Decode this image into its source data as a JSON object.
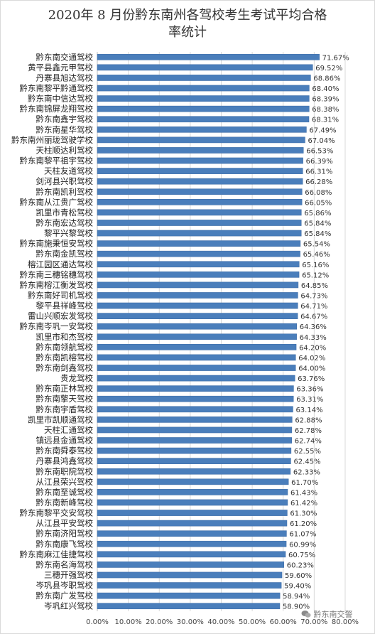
{
  "chart_data": {
    "type": "bar",
    "orientation": "horizontal",
    "title": "2020年 8 月份黔东南州各驾校考生考试平均合格率统计",
    "title_lines": [
      "2020年 8 月份黔东南州各驾校考生考试平均合格",
      "率统计"
    ],
    "categories": [
      "黔东南交通驾校",
      "黄平县鑫元甲驾校",
      "丹寨县旭达驾校",
      "黔东南黎平黔通驾校",
      "黔东南中信达驾校",
      "黔东南锦屏龙翔驾校",
      "黔东南鑫宇驾校",
      "黔东南星华驾校",
      "黔东南州丽珑驾驶学校",
      "天柱顺达利驾校",
      "黔东南黎平祖宇驾校",
      "天柱友道驾校",
      "剑河县兴职驾校",
      "黔东南凯利驾校",
      "黔东南从江贵广驾校",
      "凯里市青松驾校",
      "黔东南宏达驾校",
      "黎平兴黎驾校",
      "黔东南施秉恒安驾校",
      "黔东南金凯驾校",
      "榕江园区通达驾校",
      "黔东南三穗铭穗驾校",
      "黔东南榕江衡发驾校",
      "黔东南好司机驾校",
      "黎平县祥峰驾校",
      "雷山兴顺宏发驾校",
      "黔东南岑巩一安驾校",
      "凯里市和杰驾校",
      "黔东南领航驾校",
      "黔东南凯榕驾校",
      "黔东南剑鑫驾校",
      "贵龙驾校",
      "黔东南正林驾校",
      "黔东南擎天驾校",
      "黔东南宇盾驾校",
      "凯里市凯顺通驾校",
      "天柱汇通驾校",
      "镇远县金通驾校",
      "黔东南舜泰驾校",
      "丹寨县鸿鑫驾校",
      "黔东南职院驾校",
      "从江县荣兴驾校",
      "黔东南至诚驾校",
      "黔东南新峰驾校",
      "黔东南黎平交安驾校",
      "从江县平安驾校",
      "黔东南济阳驾校",
      "黔东南康飞驾校",
      "黔东南麻江佳捷驾校",
      "黔东南名海驾校",
      "三穗开强驾校",
      "岑巩县岑职驾校",
      "黔东南广发驾校",
      "岑巩红兴驾校"
    ],
    "values": [
      71.67,
      69.52,
      68.86,
      68.4,
      68.39,
      68.38,
      68.31,
      67.49,
      67.04,
      66.53,
      66.39,
      66.31,
      66.28,
      66.08,
      66.05,
      65.86,
      65.84,
      65.84,
      65.54,
      65.46,
      65.16,
      65.12,
      64.85,
      64.73,
      64.71,
      64.67,
      64.36,
      64.33,
      64.2,
      64.02,
      64.0,
      63.76,
      63.36,
      63.31,
      63.14,
      62.88,
      62.78,
      62.74,
      62.55,
      62.45,
      62.33,
      61.7,
      61.43,
      61.42,
      61.3,
      61.2,
      61.07,
      60.99,
      60.75,
      60.23,
      59.6,
      59.4,
      58.94,
      58.9
    ],
    "data_labels": [
      "71.67%",
      "69.52%",
      "68.86%",
      "68.40%",
      "68.39%",
      "68.38%",
      "68.31%",
      "67.49%",
      "67.04%",
      "66.53%",
      "66.39%",
      "66.31%",
      "66.28%",
      "66.08%",
      "66.05%",
      "65.86%",
      "65.84%",
      "65.84%",
      "65.54%",
      "65.46%",
      "65.16%",
      "65.12%",
      "64.85%",
      "64.73%",
      "64.71%",
      "64.67%",
      "64.36%",
      "64.33%",
      "64.20%",
      "64.02%",
      "64.00%",
      "63.76%",
      "63.36%",
      "63.31%",
      "63.14%",
      "62.88%",
      "62.78%",
      "62.74%",
      "62.55%",
      "62.45%",
      "62.33%",
      "61.70%",
      "61.43%",
      "61.42%",
      "61.30%",
      "61.20%",
      "61.07%",
      "60.99%",
      "60.75%",
      "60.23%",
      "59.60%",
      "59.40%",
      "58.94%",
      "58.90%"
    ],
    "xlim": [
      0,
      80
    ],
    "x_ticks": [
      "0.00%",
      "10.00%",
      "20.00%",
      "30.00%",
      "40.00%",
      "50.00%",
      "60.00%",
      "70.00%",
      "80.00%"
    ],
    "xlabel": "",
    "ylabel": "",
    "grid": true,
    "legend": "none",
    "bar_color": "#4a7ebb",
    "bar_edge_color": "#3c6aa4",
    "grid_color": "#d9d9d9"
  },
  "watermark": {
    "text": "黔东南交警",
    "icon": "wechat-icon"
  }
}
